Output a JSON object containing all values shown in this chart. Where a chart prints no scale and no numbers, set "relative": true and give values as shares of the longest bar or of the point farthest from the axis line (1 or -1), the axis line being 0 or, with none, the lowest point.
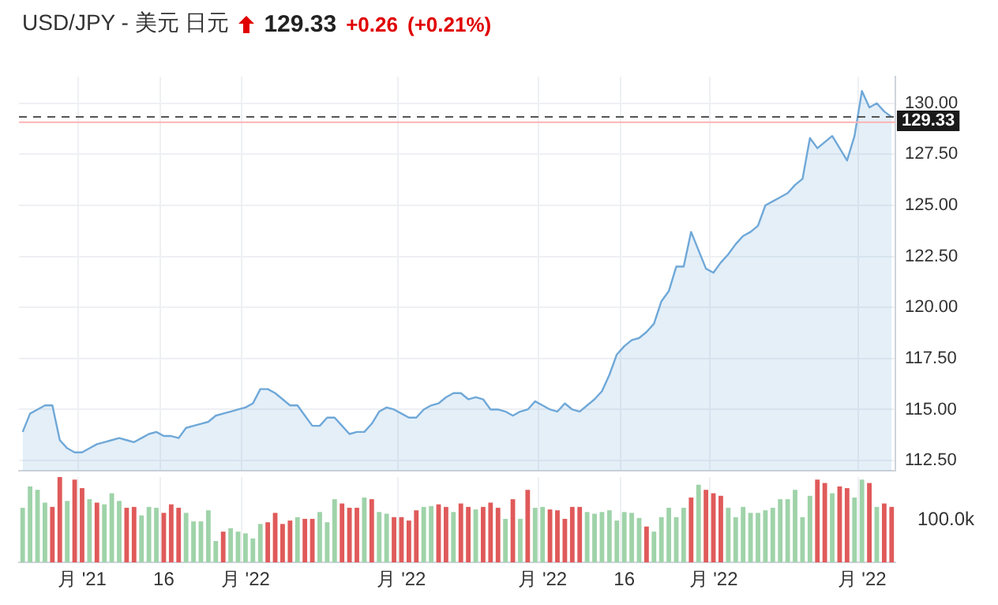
{
  "chart_data": [
    {
      "type": "area",
      "title": "USD/JPY - 美元 日元",
      "annotations": [
        "129.33",
        "+0.26",
        "(+0.21%)"
      ],
      "categories": [
        null,
        null,
        null,
        null,
        null,
        null,
        null,
        null,
        "月 '21",
        null,
        null,
        null,
        null,
        null,
        null,
        null,
        null,
        null,
        null,
        "16",
        null,
        null,
        null,
        null,
        null,
        null,
        null,
        null,
        null,
        null,
        "月 '22",
        null,
        null,
        null,
        null,
        null,
        null,
        null,
        null,
        null,
        null,
        null,
        null,
        null,
        null,
        null,
        null,
        null,
        null,
        null,
        null,
        "月 '22",
        null,
        null,
        null,
        null,
        null,
        null,
        null,
        null,
        null,
        null,
        null,
        null,
        null,
        null,
        null,
        null,
        null,
        null,
        "月 '22",
        null,
        null,
        null,
        null,
        null,
        null,
        null,
        null,
        null,
        null,
        "16",
        null,
        null,
        null,
        null,
        null,
        null,
        null,
        null,
        null,
        null,
        null,
        "月 '22",
        null,
        null,
        null,
        null,
        null,
        null,
        null,
        null,
        null,
        null,
        null,
        null,
        null,
        null,
        null,
        null,
        null,
        null,
        null,
        "月 '22",
        null,
        null,
        null,
        null
      ],
      "series": [
        {
          "color": "#6fa8d8",
          "values": [
            113.9,
            114.8,
            115.0,
            115.2,
            115.2,
            113.5,
            113.1,
            112.9,
            112.9,
            113.1,
            113.3,
            113.4,
            113.5,
            113.6,
            113.5,
            113.4,
            113.6,
            113.8,
            113.9,
            113.7,
            113.7,
            113.6,
            114.1,
            114.2,
            114.3,
            114.4,
            114.7,
            114.8,
            114.9,
            115.0,
            115.1,
            115.3,
            116.0,
            116.0,
            115.8,
            115.5,
            115.2,
            115.2,
            114.7,
            114.2,
            114.2,
            114.6,
            114.6,
            114.2,
            113.8,
            113.9,
            113.9,
            114.3,
            114.9,
            115.1,
            115.0,
            114.8,
            114.6,
            114.6,
            115.0,
            115.2,
            115.3,
            115.6,
            115.8,
            115.8,
            115.5,
            115.6,
            115.5,
            115.0,
            115.0,
            114.9,
            114.7,
            114.9,
            115.0,
            115.4,
            115.2,
            115.0,
            114.9,
            115.3,
            115.0,
            114.9,
            115.2,
            115.5,
            115.9,
            116.7,
            117.7,
            118.1,
            118.4,
            118.5,
            118.8,
            119.2,
            120.3,
            120.8,
            122.0,
            122.0,
            123.7,
            122.8,
            121.9,
            121.7,
            122.2,
            122.6,
            123.1,
            123.5,
            123.7,
            124.0,
            125.0,
            125.2,
            125.4,
            125.6,
            126.0,
            126.3,
            128.3,
            127.8,
            128.1,
            128.4,
            127.8,
            127.2,
            128.4,
            130.6,
            129.8,
            130.0,
            129.6,
            129.33
          ]
        }
      ],
      "ylim": [
        112,
        131.3
      ],
      "yticks": [
        {
          "value": 112.5,
          "label": "112.50"
        },
        {
          "value": 115,
          "label": "115.00"
        },
        {
          "value": 117.5,
          "label": "117.50"
        },
        {
          "value": 120,
          "label": "120.00"
        },
        {
          "value": 122.5,
          "label": "122.50"
        },
        {
          "value": 125,
          "label": "125.00"
        },
        {
          "value": 127.5,
          "label": "127.50"
        },
        {
          "value": 130,
          "label": "130.00"
        }
      ],
      "ref_lines": [
        {
          "axis": "y",
          "value": 129.33,
          "label": "129.33",
          "color": "#555555",
          "line_style": "dashed"
        },
        {
          "axis": "y",
          "value": 129.07,
          "color": "#ffb3b3",
          "line_style": "solid"
        }
      ],
      "grid": true,
      "marker": "none",
      "legend": false
    },
    {
      "type": "bar",
      "relative": true,
      "annotations": [
        "100.0k"
      ],
      "categories": [
        null,
        null,
        null,
        null,
        null,
        null,
        null,
        null,
        null,
        null,
        null,
        null,
        null,
        null,
        null,
        null,
        null,
        null,
        null,
        null,
        null,
        null,
        null,
        null,
        null,
        null,
        null,
        null,
        null,
        null,
        null,
        null,
        null,
        null,
        null,
        null,
        null,
        null,
        null,
        null,
        null,
        null,
        null,
        null,
        null,
        null,
        null,
        null,
        null,
        null,
        null,
        null,
        null,
        null,
        null,
        null,
        null,
        null,
        null,
        null,
        null,
        null,
        null,
        null,
        null,
        null,
        null,
        null,
        null,
        null,
        null,
        null,
        null,
        null,
        null,
        null,
        null,
        null,
        null,
        null,
        null,
        null,
        null,
        null,
        null,
        null,
        null,
        null,
        null,
        null,
        null,
        null,
        null,
        null,
        null,
        null,
        null,
        null,
        null,
        null,
        null,
        null,
        null,
        null,
        null,
        null,
        null,
        null,
        null,
        null,
        null,
        null,
        null,
        null,
        null,
        null,
        null,
        null
      ],
      "values": [
        0.64,
        0.89,
        0.85,
        0.7,
        0.65,
        1,
        0.72,
        0.97,
        0.87,
        0.74,
        0.7,
        0.68,
        0.81,
        0.72,
        0.64,
        0.65,
        0.55,
        0.65,
        0.64,
        0.58,
        0.68,
        0.64,
        0.58,
        0.48,
        0.48,
        0.61,
        0.25,
        0.36,
        0.4,
        0.36,
        0.34,
        0.28,
        0.45,
        0.47,
        0.58,
        0.45,
        0.49,
        0.53,
        0.51,
        0.51,
        0.59,
        0.47,
        0.74,
        0.69,
        0.64,
        0.64,
        0.76,
        0.74,
        0.59,
        0.57,
        0.53,
        0.53,
        0.49,
        0.61,
        0.65,
        0.66,
        0.68,
        0.65,
        0.59,
        0.69,
        0.65,
        0.62,
        0.65,
        0.7,
        0.64,
        0.51,
        0.74,
        0.51,
        0.85,
        0.64,
        0.65,
        0.62,
        0.61,
        0.51,
        0.65,
        0.65,
        0.59,
        0.57,
        0.59,
        0.61,
        0.49,
        0.59,
        0.58,
        0.52,
        0.42,
        0.36,
        0.53,
        0.64,
        0.53,
        0.64,
        0.76,
        0.91,
        0.85,
        0.81,
        0.78,
        0.64,
        0.53,
        0.65,
        0.58,
        0.58,
        0.61,
        0.64,
        0.74,
        0.74,
        0.85,
        0.53,
        0.78,
        0.97,
        0.93,
        0.81,
        0.89,
        0.87,
        0.76,
        0.97,
        0.93,
        0.65,
        0.69,
        0.65
      ],
      "colors": [
        "#9fd3a9",
        "#9fd3a9",
        "#9fd3a9",
        "#9fd3a9",
        "#e05a5a",
        "#e05a5a",
        "#9fd3a9",
        "#e05a5a",
        "#e05a5a",
        "#9fd3a9",
        "#e05a5a",
        "#9fd3a9",
        "#9fd3a9",
        "#9fd3a9",
        "#e05a5a",
        "#e05a5a",
        "#9fd3a9",
        "#9fd3a9",
        "#9fd3a9",
        "#e05a5a",
        "#e05a5a",
        "#e05a5a",
        "#9fd3a9",
        "#9fd3a9",
        "#9fd3a9",
        "#9fd3a9",
        "#9fd3a9",
        "#e05a5a",
        "#9fd3a9",
        "#9fd3a9",
        "#9fd3a9",
        "#9fd3a9",
        "#9fd3a9",
        "#e05a5a",
        "#e05a5a",
        "#e05a5a",
        "#e05a5a",
        "#9fd3a9",
        "#e05a5a",
        "#e05a5a",
        "#9fd3a9",
        "#9fd3a9",
        "#9fd3a9",
        "#e05a5a",
        "#e05a5a",
        "#e05a5a",
        "#9fd3a9",
        "#e05a5a",
        "#9fd3a9",
        "#9fd3a9",
        "#e05a5a",
        "#e05a5a",
        "#e05a5a",
        "#e05a5a",
        "#9fd3a9",
        "#9fd3a9",
        "#e05a5a",
        "#e05a5a",
        "#9fd3a9",
        "#e05a5a",
        "#e05a5a",
        "#9fd3a9",
        "#e05a5a",
        "#e05a5a",
        "#e05a5a",
        "#9fd3a9",
        "#e05a5a",
        "#9fd3a9",
        "#e05a5a",
        "#9fd3a9",
        "#9fd3a9",
        "#e05a5a",
        "#e05a5a",
        "#e05a5a",
        "#e05a5a",
        "#e05a5a",
        "#9fd3a9",
        "#9fd3a9",
        "#9fd3a9",
        "#9fd3a9",
        "#9fd3a9",
        "#9fd3a9",
        "#9fd3a9",
        "#9fd3a9",
        "#e05a5a",
        "#9fd3a9",
        "#9fd3a9",
        "#9fd3a9",
        "#9fd3a9",
        "#9fd3a9",
        "#e05a5a",
        "#9fd3a9",
        "#e05a5a",
        "#e05a5a",
        "#e05a5a",
        "#9fd3a9",
        "#9fd3a9",
        "#9fd3a9",
        "#9fd3a9",
        "#9fd3a9",
        "#9fd3a9",
        "#9fd3a9",
        "#9fd3a9",
        "#9fd3a9",
        "#9fd3a9",
        "#9fd3a9",
        "#9fd3a9",
        "#e05a5a",
        "#e05a5a",
        "#9fd3a9",
        "#e05a5a",
        "#e05a5a",
        "#9fd3a9",
        "#9fd3a9",
        "#e05a5a",
        "#9fd3a9",
        "#e05a5a",
        "#e05a5a"
      ],
      "grid": "x",
      "legend": false
    }
  ]
}
